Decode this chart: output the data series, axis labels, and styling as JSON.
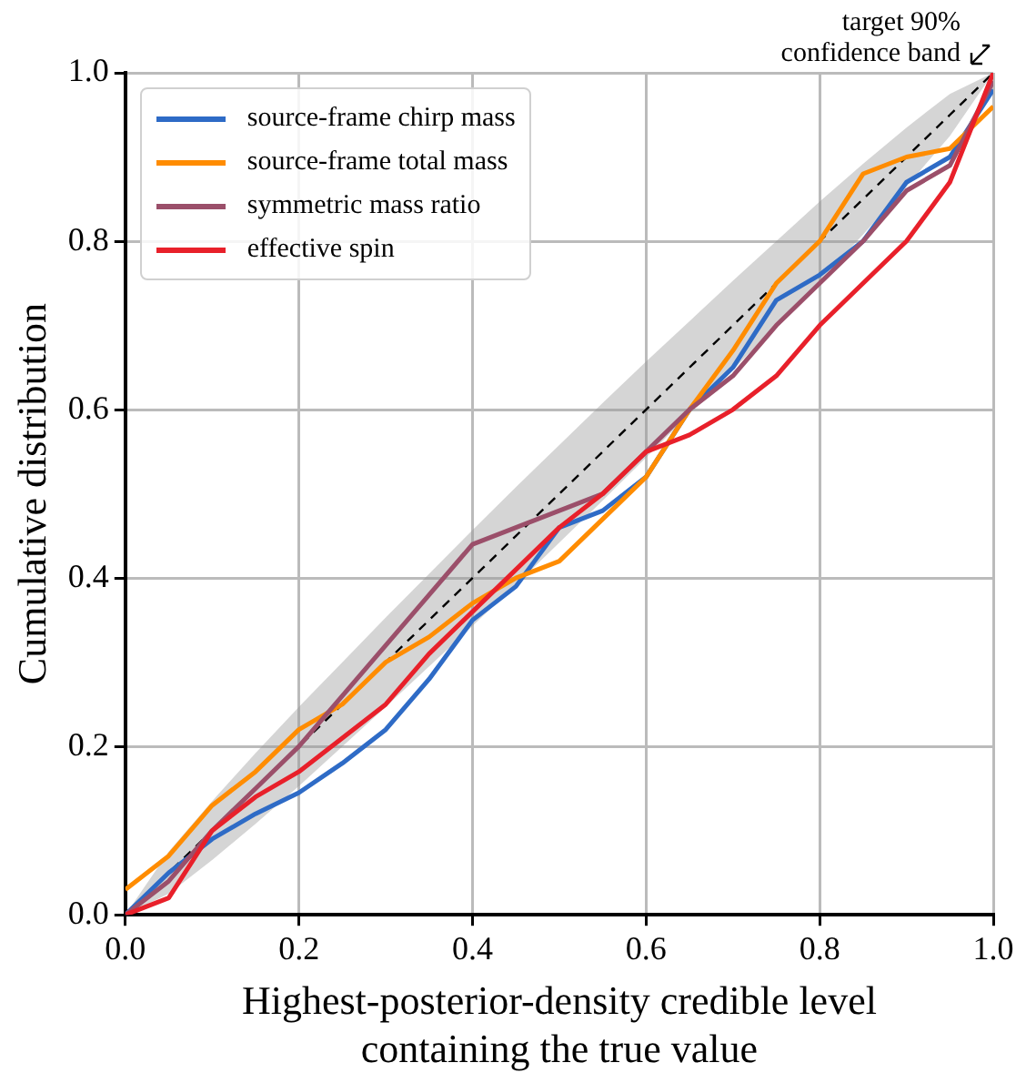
{
  "chart_data": {
    "type": "line",
    "xlabel": "Highest-posterior-density credible level\ncontaining the true value",
    "ylabel": "Cumulative distribution",
    "x": [
      0,
      0.05,
      0.1,
      0.15,
      0.2,
      0.25,
      0.3,
      0.35,
      0.4,
      0.45,
      0.5,
      0.55,
      0.6,
      0.65,
      0.7,
      0.75,
      0.8,
      0.85,
      0.9,
      0.95,
      1
    ],
    "series": [
      {
        "color": "#000000",
        "line_style": "dashed",
        "marker": "none",
        "values": [
          0,
          0.05,
          0.1,
          0.15,
          0.2,
          0.25,
          0.3,
          0.35,
          0.4,
          0.45,
          0.5,
          0.55,
          0.6,
          0.65,
          0.7,
          0.75,
          0.8,
          0.85,
          0.9,
          0.95,
          1
        ],
        "lower": [
          0,
          0.025,
          0.065,
          0.108,
          0.153,
          0.2,
          0.247,
          0.295,
          0.343,
          0.392,
          0.442,
          0.492,
          0.543,
          0.595,
          0.647,
          0.7,
          0.753,
          0.808,
          0.865,
          0.925,
          1
        ],
        "upper": [
          0,
          0.075,
          0.135,
          0.192,
          0.247,
          0.3,
          0.353,
          0.405,
          0.457,
          0.508,
          0.558,
          0.608,
          0.657,
          0.705,
          0.753,
          0.8,
          0.847,
          0.892,
          0.935,
          0.975,
          1
        ]
      },
      {
        "name": "source-frame chirp mass",
        "color": "#2e6bc6",
        "values": [
          0,
          0.05,
          0.09,
          0.12,
          0.145,
          0.18,
          0.22,
          0.28,
          0.35,
          0.39,
          0.46,
          0.48,
          0.52,
          0.6,
          0.65,
          0.73,
          0.76,
          0.8,
          0.87,
          0.9,
          0.98
        ]
      },
      {
        "name": "source-frame total mass",
        "color": "#ff8c00",
        "values": [
          0.03,
          0.07,
          0.13,
          0.17,
          0.22,
          0.25,
          0.3,
          0.33,
          0.37,
          0.4,
          0.42,
          0.47,
          0.52,
          0.6,
          0.67,
          0.75,
          0.8,
          0.88,
          0.9,
          0.91,
          0.96
        ]
      },
      {
        "name": "symmetric mass ratio",
        "color": "#9b4f6a",
        "values": [
          0,
          0.04,
          0.1,
          0.15,
          0.2,
          0.26,
          0.32,
          0.38,
          0.44,
          0.46,
          0.48,
          0.5,
          0.55,
          0.6,
          0.64,
          0.7,
          0.75,
          0.8,
          0.86,
          0.89,
          0.99
        ]
      },
      {
        "name": "effective spin",
        "color": "#e8202a",
        "values": [
          0,
          0.02,
          0.1,
          0.14,
          0.17,
          0.21,
          0.25,
          0.31,
          0.36,
          0.41,
          0.46,
          0.5,
          0.55,
          0.57,
          0.6,
          0.64,
          0.7,
          0.75,
          0.8,
          0.87,
          1
        ]
      }
    ],
    "xlim": [
      0,
      1
    ],
    "ylim": [
      0,
      1
    ],
    "xticks": [
      {
        "value": 0,
        "label": "0.0"
      },
      {
        "value": 0.2,
        "label": "0.2"
      },
      {
        "value": 0.4,
        "label": "0.4"
      },
      {
        "value": 0.6,
        "label": "0.6"
      },
      {
        "value": 0.8,
        "label": "0.8"
      },
      {
        "value": 1,
        "label": "1.0"
      }
    ],
    "yticks": [
      {
        "value": 0,
        "label": "0.0"
      },
      {
        "value": 0.2,
        "label": "0.2"
      },
      {
        "value": 0.4,
        "label": "0.4"
      },
      {
        "value": 0.6,
        "label": "0.6"
      },
      {
        "value": 0.8,
        "label": "0.8"
      },
      {
        "value": 1,
        "label": "1.0"
      }
    ],
    "grid": true,
    "legend": "top left",
    "marker": "none",
    "line_style": "solid",
    "annotations": [
      {
        "text": "target 90%\nconfidence band",
        "x": 1,
        "y": 1
      }
    ]
  }
}
